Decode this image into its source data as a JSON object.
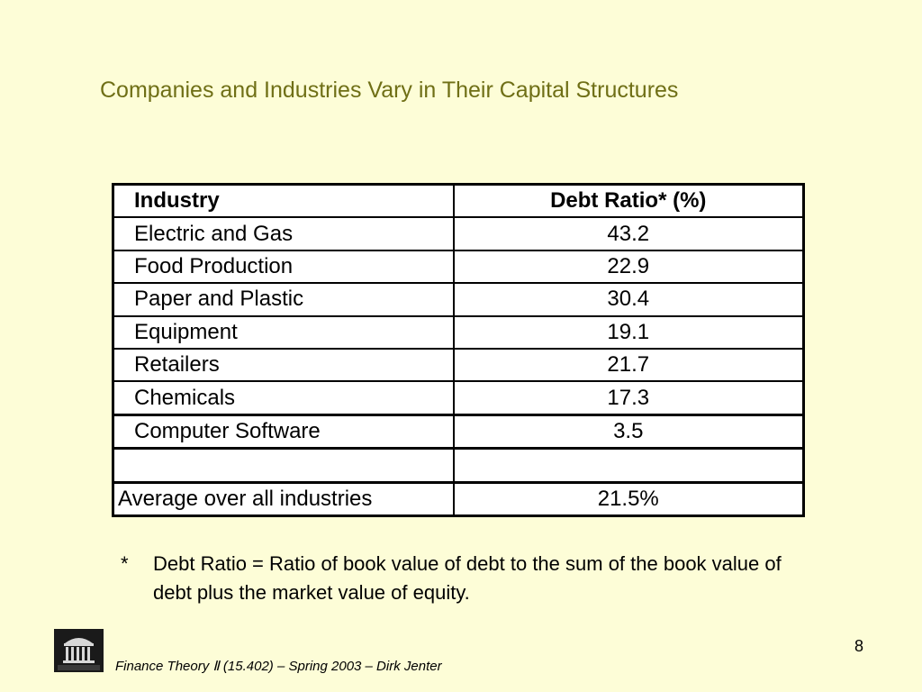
{
  "slide": {
    "title": "Companies and Industries Vary in Their Capital Structures",
    "page_number": "8",
    "footer": "Finance Theory Ⅱ (15.402) – Spring 2003 – Dirk Jenter",
    "logo_icon": "mit-sloan-logo",
    "background_color": "#fdfdd7",
    "title_color": "#6f6f16"
  },
  "table": {
    "headers": [
      "Industry",
      "Debt Ratio* (%)"
    ],
    "rows": [
      [
        "Electric and Gas",
        "43.2"
      ],
      [
        "Food Production",
        "22.9"
      ],
      [
        "Paper and Plastic",
        "30.4"
      ],
      [
        "Equipment",
        "19.1"
      ],
      [
        "Retailers",
        "21.7"
      ],
      [
        "Chemicals",
        "17.3"
      ],
      [
        "Computer Software",
        "3.5"
      ],
      [
        "",
        ""
      ]
    ],
    "average": [
      "Average over all industries",
      "21.5%"
    ]
  },
  "footnote": {
    "marker": "*",
    "text": "Debt Ratio = Ratio of book value of debt to the sum of the book value of debt plus the market value of equity."
  }
}
